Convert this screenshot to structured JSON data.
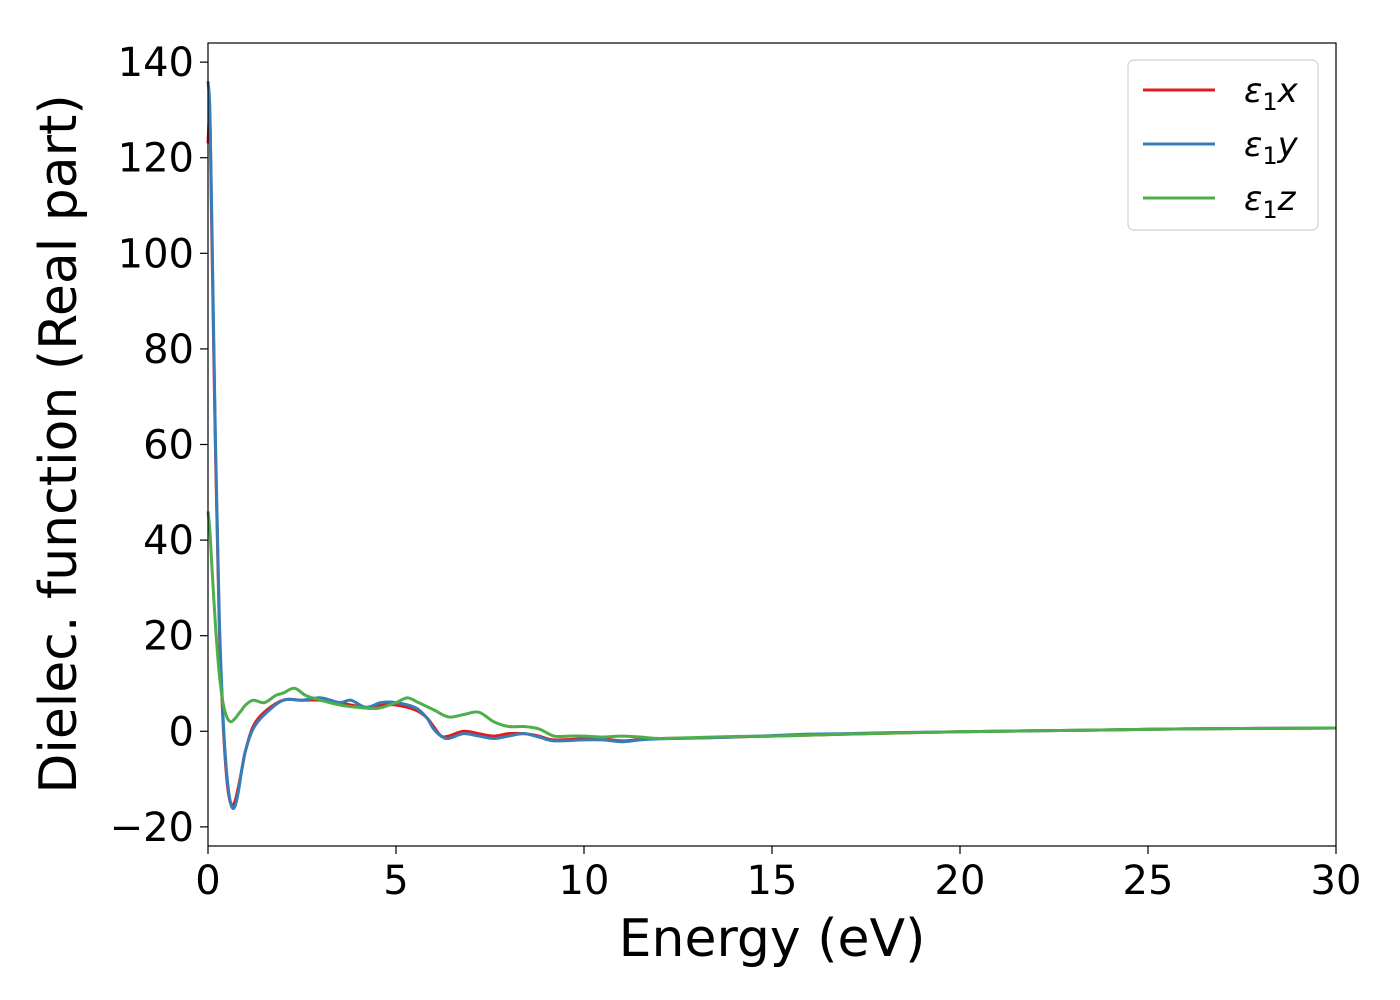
{
  "chart_data": {
    "type": "line",
    "xlabel": "Energy (eV)",
    "ylabel": "Dielec. function (Real part)",
    "xlim": [
      0,
      30
    ],
    "ylim": [
      -24,
      144
    ],
    "xticks": [
      "0",
      "5",
      "10",
      "15",
      "20",
      "25",
      "30"
    ],
    "yticks": [
      "−20",
      "0",
      "20",
      "40",
      "60",
      "80",
      "100",
      "120",
      "140"
    ],
    "grid": false,
    "legend_position": "top-right",
    "series": [
      {
        "name": "ε₁x",
        "legend_base": "ε",
        "legend_sub": "1",
        "legend_var": "x",
        "color": "#e41a1c",
        "x": [
          0,
          0.05,
          0.1,
          0.2,
          0.3,
          0.4,
          0.5,
          0.6,
          0.7,
          0.8,
          0.9,
          1.0,
          1.2,
          1.5,
          2.0,
          2.5,
          3.0,
          3.5,
          3.8,
          4.2,
          4.6,
          5.0,
          5.5,
          5.8,
          6.0,
          6.2,
          6.4,
          6.8,
          7.2,
          7.6,
          8.0,
          8.4,
          8.8,
          9.2,
          10.0,
          10.5,
          11.0,
          11.5,
          12.0,
          13.0,
          14.0,
          15.0,
          16.0,
          17.0,
          18.0,
          20.0,
          22.0,
          24.0,
          26.0,
          28.0,
          30.0
        ],
        "values": [
          123,
          128,
          105,
          58,
          22,
          2,
          -10,
          -15,
          -15,
          -12,
          -8,
          -4,
          1,
          4,
          6.5,
          6.5,
          6.5,
          6,
          5.5,
          5,
          5.5,
          5.5,
          4.5,
          3,
          1,
          -1,
          -1,
          0,
          -0.5,
          -1,
          -0.5,
          -0.5,
          -1,
          -1.8,
          -1.6,
          -1.6,
          -2,
          -1.7,
          -1.5,
          -1.4,
          -1.2,
          -1,
          -0.8,
          -0.6,
          -0.4,
          -0.1,
          0.1,
          0.3,
          0.5,
          0.6,
          0.7
        ]
      },
      {
        "name": "ε₁y",
        "legend_base": "ε",
        "legend_sub": "1",
        "legend_var": "y",
        "color": "#377eb8",
        "x": [
          0,
          0.05,
          0.1,
          0.2,
          0.3,
          0.4,
          0.5,
          0.6,
          0.7,
          0.8,
          0.9,
          1.0,
          1.2,
          1.5,
          2.0,
          2.5,
          3.0,
          3.5,
          3.8,
          4.2,
          4.6,
          5.0,
          5.5,
          5.8,
          6.0,
          6.2,
          6.4,
          6.8,
          7.2,
          7.6,
          8.0,
          8.4,
          8.8,
          9.2,
          10.0,
          10.5,
          11.0,
          11.5,
          12.0,
          13.0,
          14.0,
          15.0,
          16.0,
          17.0,
          18.0,
          20.0,
          22.0,
          24.0,
          26.0,
          28.0,
          30.0
        ],
        "values": [
          136,
          130,
          108,
          60,
          24,
          3,
          -9,
          -15,
          -16,
          -13,
          -8,
          -4,
          0.5,
          3.5,
          6.5,
          6.5,
          7,
          6,
          6.5,
          5,
          6,
          6,
          5,
          3,
          0.5,
          -1,
          -1.5,
          -0.5,
          -1,
          -1.5,
          -1,
          -0.5,
          -1.2,
          -2,
          -1.8,
          -1.8,
          -2.2,
          -1.8,
          -1.6,
          -1.4,
          -1.2,
          -0.9,
          -0.6,
          -0.5,
          -0.3,
          -0.1,
          0.1,
          0.3,
          0.5,
          0.6,
          0.7
        ]
      },
      {
        "name": "ε₁z",
        "legend_base": "ε",
        "legend_sub": "1",
        "legend_var": "z",
        "color": "#4daf4a",
        "x": [
          0,
          0.05,
          0.1,
          0.2,
          0.3,
          0.4,
          0.5,
          0.6,
          0.7,
          0.8,
          0.9,
          1.0,
          1.2,
          1.5,
          1.8,
          2.0,
          2.3,
          2.6,
          3.0,
          3.5,
          4.0,
          4.5,
          5.0,
          5.3,
          5.6,
          6.0,
          6.4,
          6.8,
          7.2,
          7.6,
          8.0,
          8.4,
          8.8,
          9.2,
          9.6,
          10.0,
          10.5,
          11.0,
          11.5,
          12.0,
          13.0,
          14.0,
          15.0,
          16.0,
          17.0,
          18.0,
          20.0,
          22.0,
          24.0,
          26.0,
          28.0,
          30.0
        ],
        "values": [
          46,
          42,
          35,
          22,
          12,
          6,
          3,
          2,
          2.5,
          3.5,
          4.5,
          5.5,
          6.5,
          6,
          7.5,
          8,
          9,
          7.5,
          6.5,
          5.5,
          5,
          4.8,
          6,
          7,
          6,
          4.5,
          3,
          3.5,
          4,
          2,
          1,
          1,
          0.5,
          -1,
          -1,
          -1,
          -1.2,
          -1,
          -1.2,
          -1.5,
          -1.3,
          -1.1,
          -1,
          -0.8,
          -0.6,
          -0.4,
          -0.1,
          0.1,
          0.3,
          0.5,
          0.6,
          0.7
        ]
      }
    ]
  }
}
